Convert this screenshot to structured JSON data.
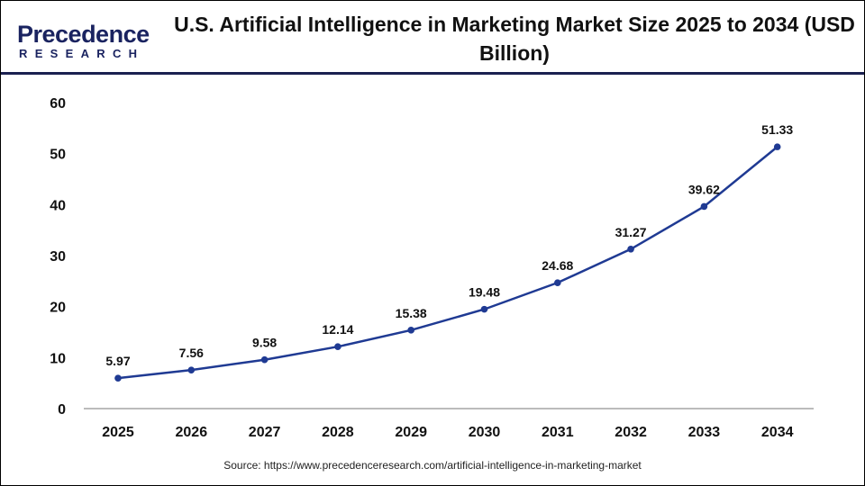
{
  "logo": {
    "line1": "Precedence",
    "line2": "RESEARCH"
  },
  "title": "U.S. Artificial Intelligence in Marketing Market Size 2025 to 2034 (USD Billion)",
  "source": "Source: https://www.precedenceresearch.com/artificial-intelligence-in-marketing-market",
  "chart_data": {
    "type": "line",
    "title": "U.S. Artificial Intelligence in Marketing Market Size 2025 to 2034 (USD Billion)",
    "categories": [
      "2025",
      "2026",
      "2027",
      "2028",
      "2029",
      "2030",
      "2031",
      "2032",
      "2033",
      "2034"
    ],
    "values": [
      5.97,
      7.56,
      9.58,
      12.14,
      15.38,
      19.48,
      24.68,
      31.27,
      39.62,
      51.33
    ],
    "data_labels": [
      "5.97",
      "7.56",
      "9.58",
      "12.14",
      "15.38",
      "19.48",
      "24.68",
      "31.27",
      "39.62",
      "51.33"
    ],
    "ylim": [
      0,
      60
    ],
    "yticks": [
      "0",
      "10",
      "20",
      "30",
      "40",
      "50",
      "60"
    ],
    "grid": false,
    "line_color": "#1f3a93"
  }
}
